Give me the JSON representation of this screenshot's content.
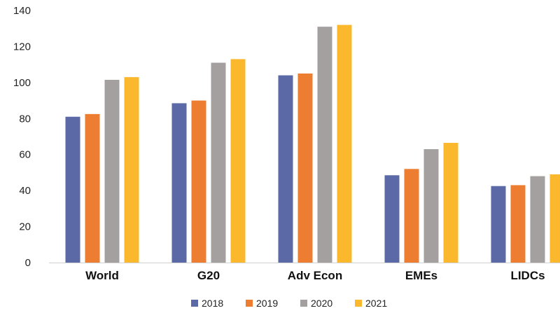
{
  "chart_data": {
    "type": "bar",
    "title": "",
    "xlabel": "",
    "ylabel": "",
    "ylim": [
      0,
      140
    ],
    "yticks": [
      0,
      20,
      40,
      60,
      80,
      100,
      120,
      140
    ],
    "grid": false,
    "legend_position": "bottom",
    "categories": [
      "World",
      "G20",
      "Adv Econ",
      "EMEs",
      "LIDCs"
    ],
    "series": [
      {
        "name": "2018",
        "color": "#5b6aa6",
        "values": [
          81,
          88.5,
          104,
          48.5,
          42.5
        ]
      },
      {
        "name": "2019",
        "color": "#ed7d31",
        "values": [
          82.5,
          90,
          105,
          52,
          43
        ]
      },
      {
        "name": "2020",
        "color": "#a5a0a0",
        "values": [
          101.5,
          111,
          131,
          63,
          48
        ]
      },
      {
        "name": "2021",
        "color": "#fbb82d",
        "values": [
          103,
          113,
          132,
          66.5,
          49
        ]
      }
    ]
  }
}
